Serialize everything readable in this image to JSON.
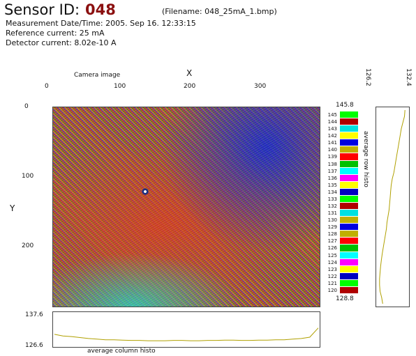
{
  "header": {
    "sensor_label": "Sensor ID:",
    "sensor_id": "048",
    "filename": "(Filename: 048_25mA_1.bmp)",
    "measurement": "Measurement Date/Time: 2005. Sep 16. 12:33:15",
    "reference_current": "Reference current: 25 mA",
    "detector_current": "Detector current: 8.02e-10 A"
  },
  "image_plot": {
    "title": "Camera image",
    "x_axis_label": "X",
    "y_axis_label": "Y",
    "x_ticks": [
      "0",
      "100",
      "200",
      "300"
    ],
    "y_ticks": [
      "0",
      "100",
      "200"
    ]
  },
  "colorbar": {
    "max_label": "145.8",
    "min_label": "128.8",
    "levels": [
      "145",
      "144",
      "143",
      "142",
      "141",
      "140",
      "139",
      "138",
      "137",
      "136",
      "135",
      "134",
      "133",
      "132",
      "131",
      "130",
      "129",
      "128",
      "127",
      "126",
      "125",
      "124",
      "123",
      "122",
      "121",
      "120"
    ],
    "colors": [
      "#00ff00",
      "#b00000",
      "#00e0e0",
      "#ffff00",
      "#0000e0",
      "#c0b000",
      "#ff0000",
      "#00c000",
      "#00ffff",
      "#ff00ff",
      "#ffff00",
      "#0000c0",
      "#00ff00",
      "#b00000",
      "#00e0e0",
      "#c0b000",
      "#0000e0",
      "#c0b000",
      "#ff0000",
      "#00c000",
      "#00ffff",
      "#ff00ff",
      "#ffff00",
      "#0000c0",
      "#00ff00",
      "#b00000"
    ]
  },
  "row_histo": {
    "label": "average row histo",
    "min_label": "126.2",
    "max_label": "132.4",
    "values": [
      0.98,
      0.96,
      0.9,
      0.84,
      0.8,
      0.76,
      0.72,
      0.68,
      0.64,
      0.6,
      0.56,
      0.5,
      0.46,
      0.44,
      0.42,
      0.4,
      0.38,
      0.34,
      0.3,
      0.28,
      0.24,
      0.2,
      0.16,
      0.12,
      0.09,
      0.06,
      0.04,
      0.02,
      0.02,
      0.04,
      0.1,
      0.14
    ]
  },
  "column_histo": {
    "label": "average column histo",
    "max_label": "137.6",
    "min_label": "126.6",
    "values": [
      0.35,
      0.3,
      0.28,
      0.25,
      0.22,
      0.2,
      0.18,
      0.18,
      0.17,
      0.16,
      0.16,
      0.15,
      0.15,
      0.15,
      0.16,
      0.16,
      0.15,
      0.15,
      0.16,
      0.16,
      0.17,
      0.17,
      0.16,
      0.16,
      0.17,
      0.17,
      0.18,
      0.18,
      0.2,
      0.22,
      0.26,
      0.55
    ]
  },
  "colors": {
    "accent": "#8b1010",
    "trace": "#b0a000"
  }
}
